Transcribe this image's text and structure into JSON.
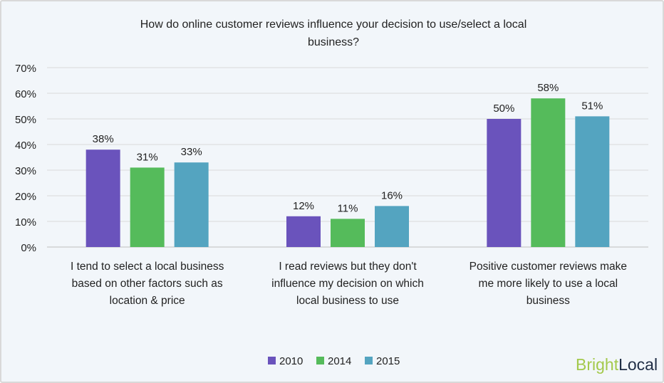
{
  "chart_data": {
    "type": "bar",
    "title": "How do online customer reviews influence your decision to use/select a local business?",
    "title_lines": [
      "How do online customer reviews influence your decision to use/select a local",
      "business?"
    ],
    "categories": [
      "I tend to select a local business based on other factors such as location & price",
      "I read reviews but they don't influence my decision on which local business to use",
      "Positive customer reviews make me more likely to use a local business"
    ],
    "category_lines": [
      [
        "I tend to select a local business",
        "based on other factors such as",
        "location & price"
      ],
      [
        "I read reviews but they don't",
        "influence my decision on which",
        "local business to use"
      ],
      [
        "Positive customer reviews make",
        "me more likely to use a local",
        "business"
      ]
    ],
    "series": [
      {
        "name": "2010",
        "color": "#6a53bc",
        "values": [
          38,
          12,
          50
        ]
      },
      {
        "name": "2014",
        "color": "#55bb5b",
        "values": [
          31,
          11,
          58
        ]
      },
      {
        "name": "2015",
        "color": "#54a4c0",
        "values": [
          33,
          16,
          51
        ]
      }
    ],
    "ylim": [
      0,
      70
    ],
    "yticks": [
      "0%",
      "10%",
      "20%",
      "30%",
      "40%",
      "50%",
      "60%",
      "70%"
    ],
    "grid": true,
    "legend": "bottom"
  },
  "logo": {
    "part1": "Bright",
    "part2": "Local",
    "color1": "#a3c94b",
    "color2": "#1f2d45"
  }
}
